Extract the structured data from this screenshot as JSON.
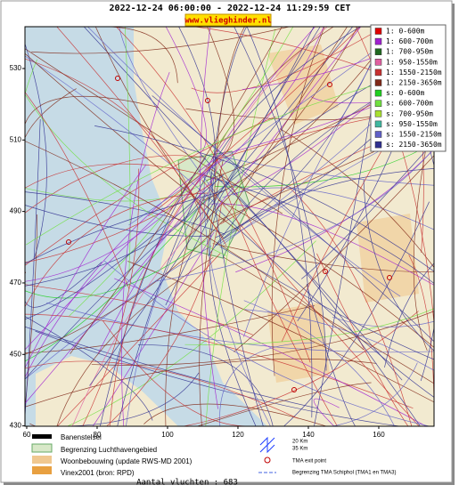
{
  "header": {
    "period": "2022-12-24 06:00:00 - 2022-12-24 11:29:59 CET",
    "site": "www.vlieghinder.nl"
  },
  "map": {
    "xlim": [
      59.5,
      175.7
    ],
    "ylim": [
      429.9,
      541.7
    ],
    "xticks": [
      60,
      80,
      100,
      120,
      140,
      160
    ],
    "yticks": [
      430,
      450,
      470,
      490,
      510,
      530
    ]
  },
  "legend": [
    {
      "label": "1: 0-600m",
      "color": "#e00000"
    },
    {
      "label": "1: 600-700m",
      "color": "#a020d0"
    },
    {
      "label": "1: 700-950m",
      "color": "#206820"
    },
    {
      "label": "1: 950-1550m",
      "color": "#e060a0"
    },
    {
      "label": "1: 1550-2150m",
      "color": "#c83030"
    },
    {
      "label": "1: 2150-3650m",
      "color": "#802818"
    },
    {
      "label": "s: 0-600m",
      "color": "#20d020"
    },
    {
      "label": "s: 600-700m",
      "color": "#70e040"
    },
    {
      "label": "s: 700-950m",
      "color": "#a8e030"
    },
    {
      "label": "s: 950-1550m",
      "color": "#40b8a0"
    },
    {
      "label": "s: 1550-2150m",
      "color": "#6060c8"
    },
    {
      "label": "s: 2150-3650m",
      "color": "#303090"
    }
  ],
  "footer": {
    "runways": "Banenstelsel",
    "airport_area": "Begrenzing Luchthavengebied",
    "housing": "Woonbebouwing (update RWS-MD 2001)",
    "vinex": "Vinex2001 (bron: RPD)",
    "km20": "20 Km",
    "km35": "35 Km",
    "tma_exit": "TMA exit point",
    "tma_boundary": "Begrenzing TMA Schiphol  (TMA1 en TMA3)",
    "count": "Aantal vluchten : 683"
  }
}
